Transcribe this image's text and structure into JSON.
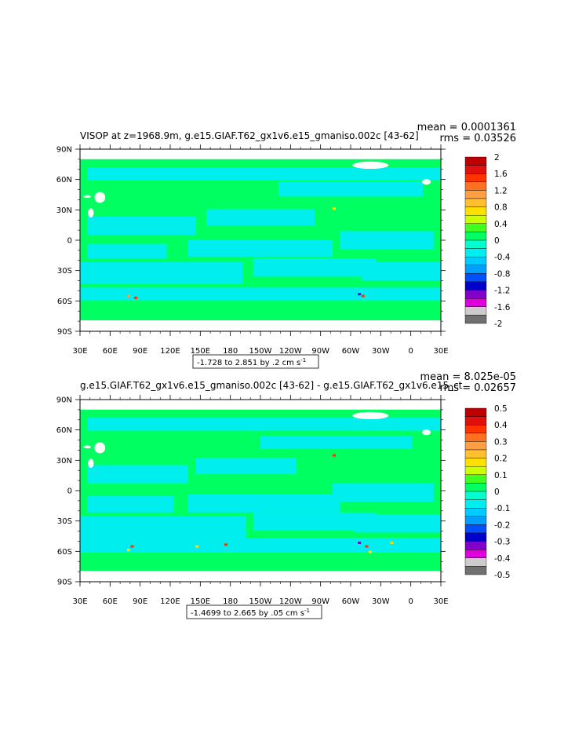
{
  "chart_data": [
    {
      "type": "heatmap",
      "title": "VISOP at z=1968.9m, g.e15.GIAF.T62_gx1v6.e15_gmaniso.002c [43-62]",
      "mean_label": "mean = 0.0001361",
      "rms_label": "rms = 0.03526",
      "x_ticks": [
        "30E",
        "60E",
        "90E",
        "120E",
        "150E",
        "180",
        "150W",
        "120W",
        "90W",
        "60W",
        "30W",
        "0",
        "30E"
      ],
      "y_ticks": [
        "90N",
        "60N",
        "30N",
        "0",
        "30S",
        "60S",
        "90S"
      ],
      "colorbar_labels": [
        "2",
        "1.6",
        "1.2",
        "0.8",
        "0.4",
        "0",
        "-0.4",
        "-0.8",
        "-1.2",
        "-1.6",
        "-2"
      ],
      "colorbar_colors": [
        "#c00000",
        "#e01010",
        "#ff3300",
        "#ff7020",
        "#ffa040",
        "#ffc030",
        "#ffe000",
        "#ccff00",
        "#40ff20",
        "#00ff60",
        "#00ffcc",
        "#00eeee",
        "#00ccff",
        "#00a0ff",
        "#0050ff",
        "#0000cc",
        "#8000cc",
        "#dd00dd",
        "#cccccc",
        "#707070"
      ],
      "range_label": "-1.728 to 2.851 by .2 cm s",
      "range_sup": "-1"
    },
    {
      "type": "heatmap",
      "title": "g.e15.GIAF.T62_gx1v6.e15_gmaniso.002c [43-62] - g.e15.GIAF.T62_gx1v6.e15_ct",
      "mean_label": "mean = 8.025e-05",
      "rms_label": "rms = 0.02657",
      "x_ticks": [
        "30E",
        "60E",
        "90E",
        "120E",
        "150E",
        "180",
        "150W",
        "120W",
        "90W",
        "60W",
        "30W",
        "0",
        "30E"
      ],
      "y_ticks": [
        "90N",
        "60N",
        "30N",
        "0",
        "30S",
        "60S",
        "90S"
      ],
      "colorbar_labels": [
        "0.5",
        "0.4",
        "0.3",
        "0.2",
        "0.1",
        "0",
        "-0.1",
        "-0.2",
        "-0.3",
        "-0.4",
        "-0.5"
      ],
      "colorbar_colors": [
        "#c00000",
        "#e01010",
        "#ff3300",
        "#ff7020",
        "#ffa040",
        "#ffc030",
        "#ffe000",
        "#ccff00",
        "#40ff20",
        "#00ff60",
        "#00ffcc",
        "#00eeee",
        "#00ccff",
        "#00a0ff",
        "#0050ff",
        "#0000cc",
        "#8000cc",
        "#dd00dd",
        "#cccccc",
        "#707070"
      ],
      "range_label": "-1.4699 to 2.665 by .05 cm s",
      "range_sup": "-1"
    }
  ],
  "colors": {
    "ocean_near_zero": "#00ff60",
    "ocean_slight_negative": "#00eeee",
    "land_mask": "#ffffff"
  }
}
